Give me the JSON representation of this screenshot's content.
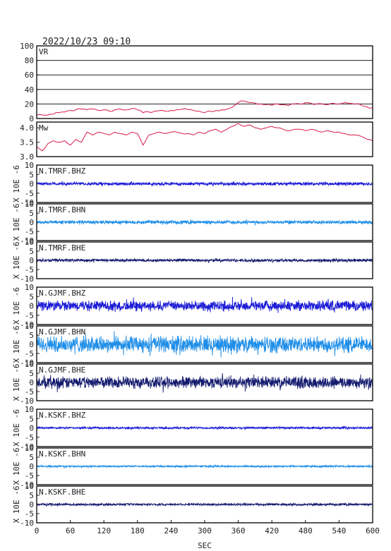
{
  "header": {
    "timestamp": "2022/10/23 09:10"
  },
  "chart_data": [
    {
      "type": "line",
      "label": "VR",
      "ylim": [
        0,
        100
      ],
      "yticks": [
        "100",
        "80",
        "60",
        "40",
        "20",
        "0"
      ],
      "color": "#d81b4a",
      "grid": true,
      "x": [
        0,
        10,
        20,
        30,
        40,
        50,
        60,
        70,
        80,
        90,
        100,
        110,
        120,
        130,
        140,
        150,
        160,
        170,
        180,
        190,
        200,
        210,
        220,
        230,
        240,
        250,
        260,
        270,
        280,
        290,
        300,
        310,
        320,
        330,
        340,
        350,
        360,
        370,
        380,
        390,
        400,
        410,
        420,
        430,
        440,
        450,
        460,
        470,
        480,
        490,
        500,
        510,
        520,
        530,
        540,
        550,
        560,
        570,
        580,
        590,
        600
      ],
      "y": [
        5,
        5,
        5,
        6,
        8,
        9,
        11,
        12,
        13,
        12,
        13,
        11,
        12,
        10,
        12,
        13,
        12,
        14,
        12,
        8,
        9,
        10,
        11,
        10,
        11,
        12,
        13,
        12,
        11,
        10,
        8,
        10,
        11,
        12,
        13,
        16,
        22,
        24,
        22,
        21,
        20,
        19,
        18,
        20,
        19,
        18,
        20,
        20,
        22,
        21,
        20,
        20,
        19,
        21,
        20,
        22,
        21,
        20,
        18,
        16,
        15
      ]
    },
    {
      "type": "line",
      "label": "Mw",
      "ylim": [
        3.0,
        4.2
      ],
      "yticks": [
        "4.0",
        "3.5",
        "3.0"
      ],
      "color": "#d81b4a",
      "grid": false,
      "x": [
        0,
        10,
        20,
        30,
        40,
        50,
        60,
        70,
        80,
        90,
        100,
        110,
        120,
        130,
        140,
        150,
        160,
        170,
        180,
        190,
        200,
        210,
        220,
        230,
        240,
        250,
        260,
        270,
        280,
        290,
        300,
        310,
        320,
        330,
        340,
        350,
        360,
        370,
        380,
        390,
        400,
        410,
        420,
        430,
        440,
        450,
        460,
        470,
        480,
        490,
        500,
        510,
        520,
        530,
        540,
        550,
        560,
        570,
        580,
        590,
        600
      ],
      "y": [
        3.35,
        3.2,
        3.45,
        3.55,
        3.5,
        3.55,
        3.4,
        3.6,
        3.5,
        3.85,
        3.75,
        3.85,
        3.8,
        3.75,
        3.85,
        3.8,
        3.75,
        3.85,
        3.8,
        3.4,
        3.75,
        3.8,
        3.85,
        3.8,
        3.85,
        3.85,
        3.8,
        3.8,
        3.75,
        3.85,
        3.8,
        3.9,
        3.95,
        3.85,
        3.95,
        4.05,
        4.15,
        4.05,
        4.1,
        4.0,
        3.95,
        4.0,
        4.05,
        4.0,
        3.95,
        3.9,
        3.95,
        3.95,
        3.9,
        3.95,
        3.9,
        3.85,
        3.9,
        3.85,
        3.85,
        3.8,
        3.75,
        3.75,
        3.7,
        3.6,
        3.55
      ]
    },
    {
      "type": "line",
      "label": "N.TMRF.BHZ",
      "ylabel": "X 10E -6",
      "ylim": [
        -10,
        10
      ],
      "yticks": [
        "10",
        "5",
        "0",
        "-5",
        "-10"
      ],
      "color": "#1a1ad6",
      "amplitude": 0.7
    },
    {
      "type": "line",
      "label": "N.TMRF.BHN",
      "ylabel": "X 10E -6",
      "ylim": [
        -10,
        10
      ],
      "yticks": [
        "10",
        "5",
        "0",
        "-5",
        "-10"
      ],
      "color": "#1e8ee8",
      "amplitude": 0.8
    },
    {
      "type": "line",
      "label": "N.TMRF.BHE",
      "ylabel": "X 10E -6",
      "ylim": [
        -10,
        10
      ],
      "yticks": [
        "10",
        "5",
        "0",
        "-5",
        "-10"
      ],
      "color": "#141a6e",
      "amplitude": 0.7
    },
    {
      "type": "line",
      "label": "N.GJMF.BHZ",
      "ylabel": "X 10E -6",
      "ylim": [
        -10,
        10
      ],
      "yticks": [
        "10",
        "5",
        "0",
        "-5",
        "-10"
      ],
      "color": "#1a1ad6",
      "amplitude": 2.2
    },
    {
      "type": "line",
      "label": "N.GJMF.BHN",
      "ylabel": "X 10E -6",
      "ylim": [
        -10,
        10
      ],
      "yticks": [
        "10",
        "5",
        "0",
        "-5",
        "-10"
      ],
      "color": "#1e8ee8",
      "amplitude": 3.6
    },
    {
      "type": "line",
      "label": "N.GJMF.BHE",
      "ylabel": "X 10E -6",
      "ylim": [
        -10,
        10
      ],
      "yticks": [
        "10",
        "5",
        "0",
        "-5",
        "-10"
      ],
      "color": "#141a6e",
      "amplitude": 2.6
    },
    {
      "type": "line",
      "label": "N.KSKF.BHZ",
      "ylabel": "X 10E -6",
      "ylim": [
        -10,
        10
      ],
      "yticks": [
        "10",
        "5",
        "0",
        "-5",
        "-10"
      ],
      "color": "#1a1ad6",
      "amplitude": 0.5
    },
    {
      "type": "line",
      "label": "N.KSKF.BHN",
      "ylabel": "X 10E -6",
      "ylim": [
        -10,
        10
      ],
      "yticks": [
        "10",
        "5",
        "0",
        "-5",
        "-10"
      ],
      "color": "#1e8ee8",
      "amplitude": 0.45
    },
    {
      "type": "line",
      "label": "N.KSKF.BHE",
      "ylabel": "X 10E -6",
      "ylim": [
        -10,
        10
      ],
      "yticks": [
        "10",
        "5",
        "0",
        "-5",
        "-10"
      ],
      "color": "#141a6e",
      "amplitude": 0.5
    }
  ],
  "xaxis": {
    "label": "SEC",
    "xlim": [
      0,
      600
    ],
    "ticks": [
      0,
      60,
      120,
      180,
      240,
      300,
      360,
      420,
      480,
      540,
      600
    ]
  }
}
